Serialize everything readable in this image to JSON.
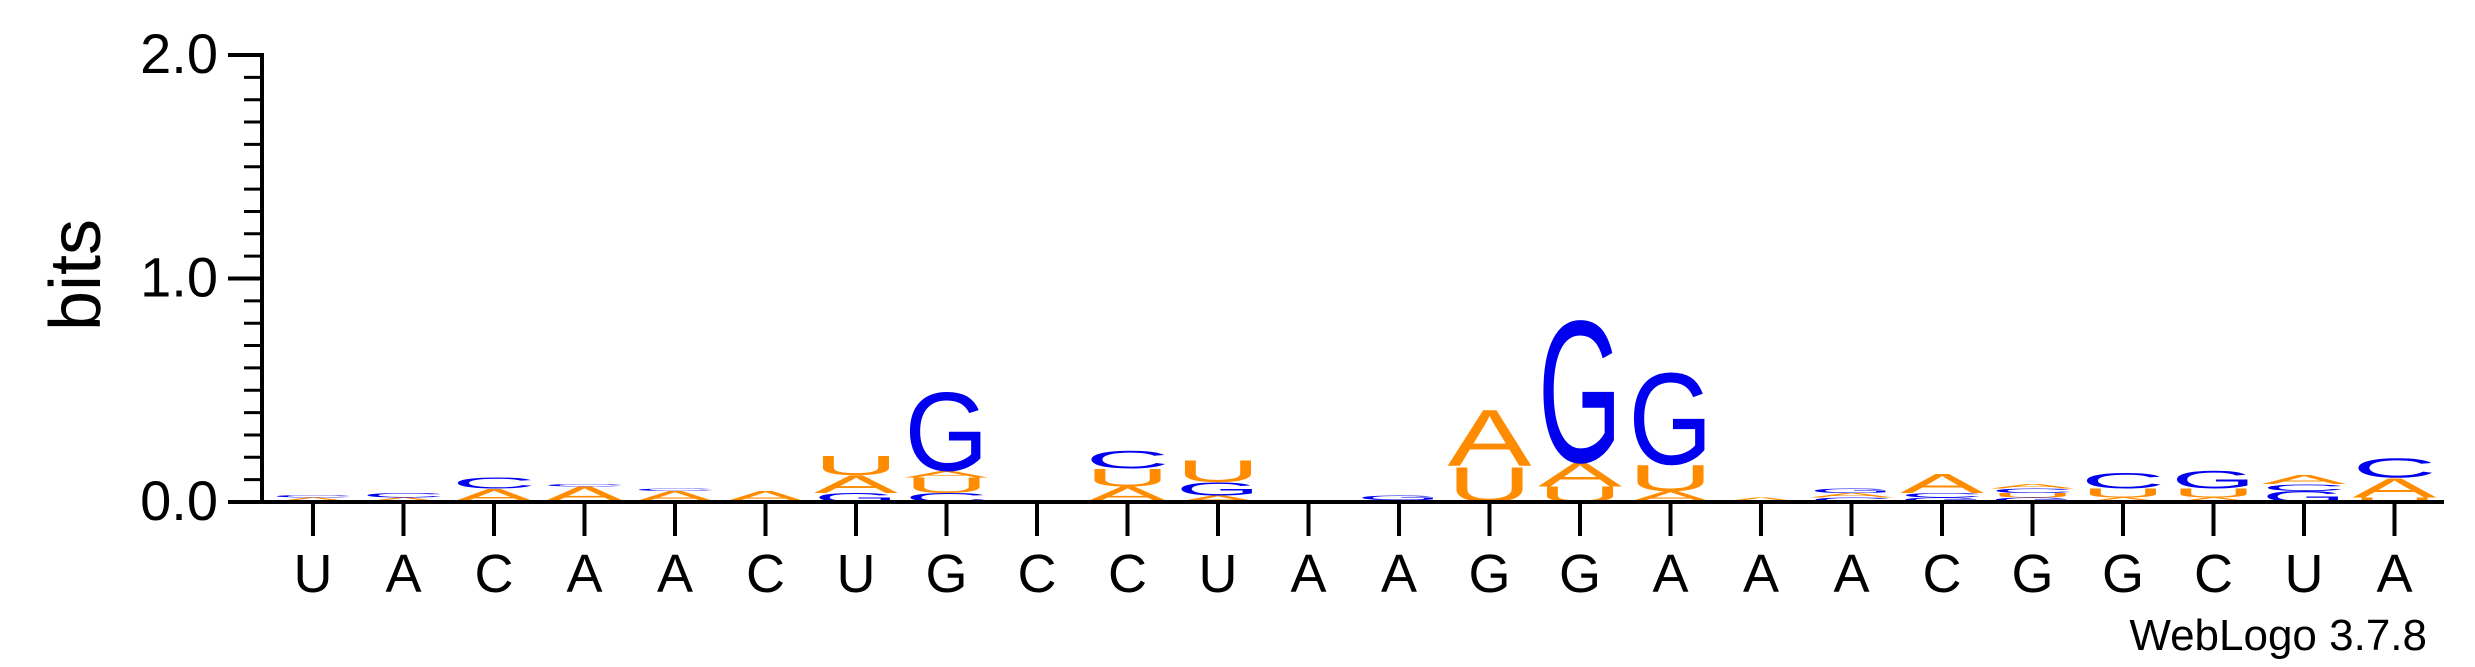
{
  "chart_data": {
    "type": "sequence-logo",
    "ylabel": "bits",
    "ylim": [
      0,
      2.0
    ],
    "yticks": [
      "0.0",
      "1.0",
      "2.0"
    ],
    "credit": "WebLogo 3.7.8",
    "colors": {
      "A": "#ff8c00",
      "U": "#ff8c00",
      "C": "#0000ee",
      "G": "#0000ee"
    },
    "positions": [
      {
        "label": "U",
        "stack": [
          {
            "base": "A",
            "bits": 0.02
          },
          {
            "base": "C",
            "bits": 0.01
          }
        ]
      },
      {
        "label": "A",
        "stack": [
          {
            "base": "A",
            "bits": 0.02
          },
          {
            "base": "C",
            "bits": 0.02
          }
        ]
      },
      {
        "label": "C",
        "stack": [
          {
            "base": "A",
            "bits": 0.06
          },
          {
            "base": "C",
            "bits": 0.05
          }
        ]
      },
      {
        "label": "A",
        "stack": [
          {
            "base": "A",
            "bits": 0.07
          },
          {
            "base": "C",
            "bits": 0.01
          }
        ]
      },
      {
        "label": "A",
        "stack": [
          {
            "base": "A",
            "bits": 0.05
          },
          {
            "base": "C",
            "bits": 0.01
          }
        ]
      },
      {
        "label": "C",
        "stack": [
          {
            "base": "A",
            "bits": 0.05
          }
        ]
      },
      {
        "label": "U",
        "stack": [
          {
            "base": "G",
            "bits": 0.04
          },
          {
            "base": "A",
            "bits": 0.08
          },
          {
            "base": "U",
            "bits": 0.09
          }
        ]
      },
      {
        "label": "G",
        "stack": [
          {
            "base": "C",
            "bits": 0.04
          },
          {
            "base": "U",
            "bits": 0.07
          },
          {
            "base": "A",
            "bits": 0.03
          },
          {
            "base": "G",
            "bits": 0.36
          }
        ]
      },
      {
        "label": "C",
        "stack": []
      },
      {
        "label": "C",
        "stack": [
          {
            "base": "A",
            "bits": 0.07
          },
          {
            "base": "U",
            "bits": 0.08
          },
          {
            "base": "C",
            "bits": 0.08
          }
        ]
      },
      {
        "label": "U",
        "stack": [
          {
            "base": "A",
            "bits": 0.03
          },
          {
            "base": "G",
            "bits": 0.06
          },
          {
            "base": "U",
            "bits": 0.1
          }
        ]
      },
      {
        "label": "A",
        "stack": []
      },
      {
        "label": "A",
        "stack": [
          {
            "base": "C",
            "bits": 0.01
          },
          {
            "base": "G",
            "bits": 0.02
          }
        ]
      },
      {
        "label": "G",
        "stack": [
          {
            "base": "U",
            "bits": 0.16
          },
          {
            "base": "A",
            "bits": 0.26
          }
        ]
      },
      {
        "label": "G",
        "stack": [
          {
            "base": "U",
            "bits": 0.07
          },
          {
            "base": "A",
            "bits": 0.11
          },
          {
            "base": "G",
            "bits": 0.65
          }
        ]
      },
      {
        "label": "A",
        "stack": [
          {
            "base": "A",
            "bits": 0.05
          },
          {
            "base": "U",
            "bits": 0.12
          },
          {
            "base": "G",
            "bits": 0.42
          }
        ]
      },
      {
        "label": "A",
        "stack": [
          {
            "base": "A",
            "bits": 0.02
          }
        ]
      },
      {
        "label": "A",
        "stack": [
          {
            "base": "C",
            "bits": 0.02
          },
          {
            "base": "A",
            "bits": 0.02
          },
          {
            "base": "G",
            "bits": 0.02
          }
        ]
      },
      {
        "label": "C",
        "stack": [
          {
            "base": "G",
            "bits": 0.02
          },
          {
            "base": "C",
            "bits": 0.02
          },
          {
            "base": "A",
            "bits": 0.09
          }
        ]
      },
      {
        "label": "G",
        "stack": [
          {
            "base": "G",
            "bits": 0.02
          },
          {
            "base": "U",
            "bits": 0.02
          },
          {
            "base": "C",
            "bits": 0.02
          },
          {
            "base": "A",
            "bits": 0.02
          }
        ]
      },
      {
        "label": "G",
        "stack": [
          {
            "base": "A",
            "bits": 0.02
          },
          {
            "base": "U",
            "bits": 0.04
          },
          {
            "base": "C",
            "bits": 0.07
          }
        ]
      },
      {
        "label": "C",
        "stack": [
          {
            "base": "A",
            "bits": 0.02
          },
          {
            "base": "U",
            "bits": 0.04
          },
          {
            "base": "G",
            "bits": 0.08
          }
        ]
      },
      {
        "label": "U",
        "stack": [
          {
            "base": "G",
            "bits": 0.05
          },
          {
            "base": "C",
            "bits": 0.03
          },
          {
            "base": "A",
            "bits": 0.04
          }
        ]
      },
      {
        "label": "A",
        "stack": [
          {
            "base": "U",
            "bits": 0.02
          },
          {
            "base": "A",
            "bits": 0.09
          },
          {
            "base": "C",
            "bits": 0.09
          }
        ]
      }
    ]
  }
}
